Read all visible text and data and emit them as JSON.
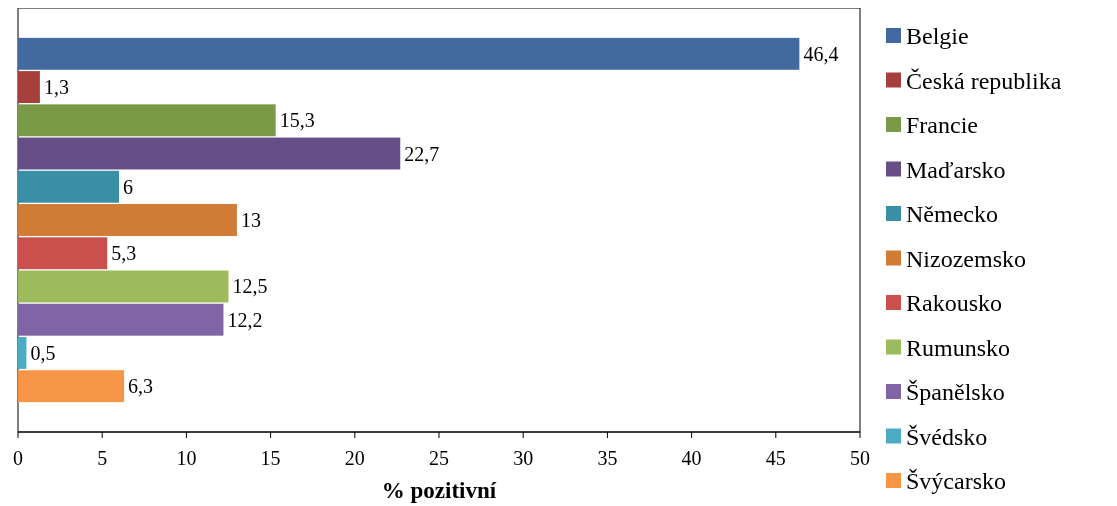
{
  "chart_data": {
    "type": "bar",
    "orientation": "horizontal",
    "categories": [
      null
    ],
    "xlabel": "% pozitivní",
    "xlim": [
      0,
      50
    ],
    "xticks": [
      0,
      5,
      10,
      15,
      20,
      25,
      30,
      35,
      40,
      45,
      50
    ],
    "legend": "right",
    "grid": false,
    "series": [
      {
        "name": "Belgie",
        "color": "#426aa0",
        "values": [
          46.4
        ],
        "value_labels": [
          "46,4"
        ]
      },
      {
        "name": "Česká republika",
        "color": "#a5403d",
        "values": [
          1.3
        ],
        "value_labels": [
          "1,3"
        ]
      },
      {
        "name": "Francie",
        "color": "#7b9a48",
        "values": [
          15.3
        ],
        "value_labels": [
          "15,3"
        ]
      },
      {
        "name": "Maďarsko",
        "color": "#664f86",
        "values": [
          22.7
        ],
        "value_labels": [
          "22,7"
        ]
      },
      {
        "name": "Německo",
        "color": "#3a8ea6",
        "values": [
          6
        ],
        "value_labels": [
          "6"
        ]
      },
      {
        "name": "Nizozemsko",
        "color": "#d07b36",
        "values": [
          13
        ],
        "value_labels": [
          "13"
        ]
      },
      {
        "name": "Rakousko",
        "color": "#c9504d",
        "values": [
          5.3
        ],
        "value_labels": [
          "5,3"
        ]
      },
      {
        "name": "Rumunsko",
        "color": "#9dbb5c",
        "values": [
          12.5
        ],
        "value_labels": [
          "12,5"
        ]
      },
      {
        "name": "Španělsko",
        "color": "#7f64a6",
        "values": [
          12.2
        ],
        "value_labels": [
          "12,2"
        ]
      },
      {
        "name": "Švédsko",
        "color": "#4bacc6",
        "values": [
          0.5
        ],
        "value_labels": [
          "0,5"
        ]
      },
      {
        "name": "Švýcarsko",
        "color": "#f79646",
        "values": [
          6.3
        ],
        "value_labels": [
          "6,3"
        ]
      }
    ]
  }
}
